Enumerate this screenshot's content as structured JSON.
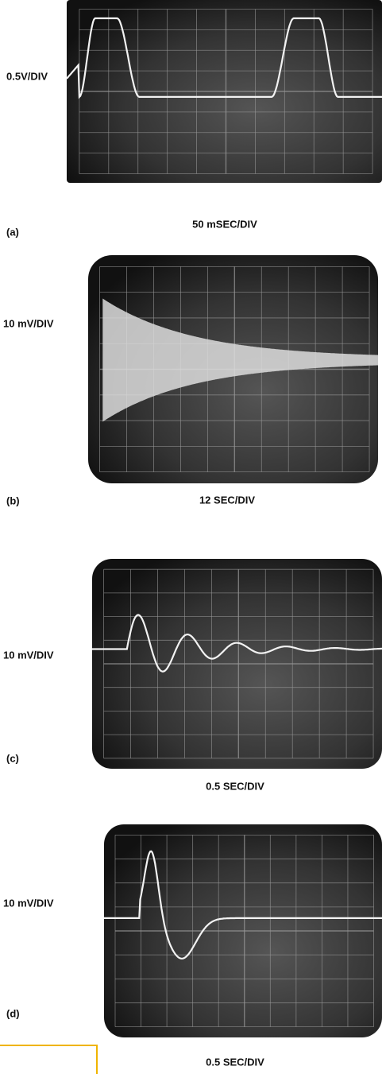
{
  "panels": [
    {
      "label": "(a)",
      "y_scale": "0.5V/DIV",
      "x_scale": "50 mSEC/DIV"
    },
    {
      "label": "(b)",
      "y_scale": "10 mV/DIV",
      "x_scale": "12 SEC/DIV"
    },
    {
      "label": "(c)",
      "y_scale": "10 mV/DIV",
      "x_scale": "0.5 SEC/DIV"
    },
    {
      "label": "(d)",
      "y_scale": "10 mV/DIV",
      "x_scale": "0.5 SEC/DIV"
    }
  ]
}
